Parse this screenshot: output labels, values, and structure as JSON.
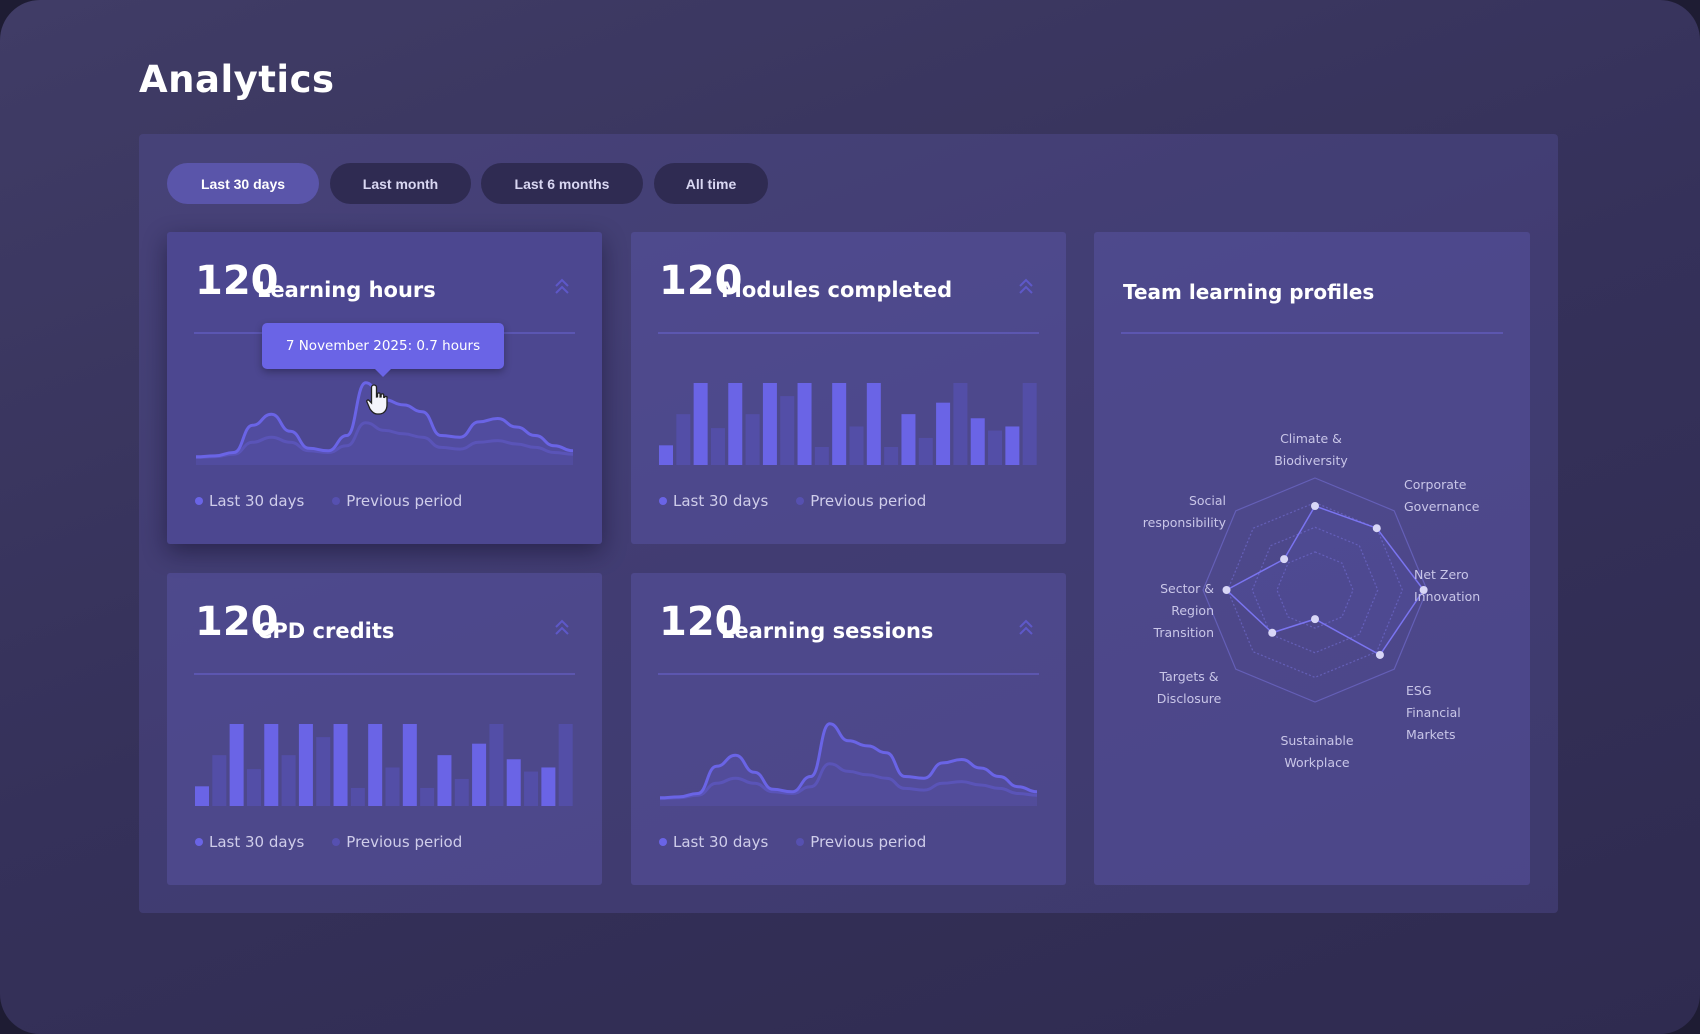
{
  "page": {
    "title": "Analytics"
  },
  "filters": [
    {
      "label": "Last 30 days",
      "active": true
    },
    {
      "label": "Last month",
      "active": false
    },
    {
      "label": "Last 6 months",
      "active": false
    },
    {
      "label": "All time",
      "active": false
    }
  ],
  "colors": {
    "accent": "#6a64e6",
    "previous": "#5650b0",
    "card": "#4c4790",
    "background": "#35315a"
  },
  "legend": {
    "current": "Last 30 days",
    "previous": "Previous period"
  },
  "cards": [
    {
      "value": "120",
      "label": "Learning hours",
      "icon": "chevron-double-up-icon",
      "chart": "line",
      "tooltip": "7 November 2025: 0.7 hours"
    },
    {
      "value": "120",
      "label": "Modules completed",
      "icon": "chevron-double-up-icon",
      "chart": "bar"
    },
    {
      "value": "120",
      "label": "CPD credits",
      "icon": "chevron-double-up-icon",
      "chart": "bar"
    },
    {
      "value": "120",
      "label": "Learning sessions",
      "icon": "chevron-double-up-icon",
      "chart": "line"
    }
  ],
  "radar": {
    "title": "Team learning profiles"
  },
  "chart_data": [
    {
      "type": "area",
      "name_ref": "Learning hours",
      "series": [
        {
          "name": "Last 30 days",
          "values": [
            5,
            6,
            10,
            42,
            55,
            35,
            15,
            12,
            30,
            92,
            72,
            66,
            58,
            30,
            28,
            46,
            50,
            40,
            30,
            18,
            12
          ]
        },
        {
          "name": "Previous period",
          "values": [
            4,
            5,
            8,
            22,
            28,
            22,
            12,
            10,
            18,
            45,
            36,
            32,
            28,
            16,
            14,
            22,
            24,
            20,
            16,
            10,
            8
          ]
        }
      ]
    },
    {
      "type": "bar",
      "name_ref": "Modules completed",
      "series": [
        {
          "name": "Last 30 days",
          "values": [
            24,
            100,
            100,
            100,
            100,
            100,
            100,
            62,
            76,
            57,
            47
          ]
        },
        {
          "name": "Previous period",
          "values": [
            62,
            45,
            62,
            84,
            22,
            47,
            22,
            33,
            100,
            42,
            100
          ]
        }
      ]
    },
    {
      "type": "bar",
      "name_ref": "CPD credits",
      "series": [
        {
          "name": "Last 30 days",
          "values": [
            24,
            100,
            100,
            100,
            100,
            100,
            100,
            62,
            76,
            57,
            47
          ]
        },
        {
          "name": "Previous period",
          "values": [
            62,
            45,
            62,
            84,
            22,
            47,
            22,
            33,
            100,
            42,
            100
          ]
        }
      ]
    },
    {
      "type": "area",
      "name_ref": "Learning sessions",
      "series": [
        {
          "name": "Last 30 days",
          "values": [
            5,
            6,
            10,
            42,
            55,
            35,
            15,
            12,
            30,
            92,
            72,
            66,
            58,
            30,
            28,
            46,
            50,
            40,
            30,
            18,
            12
          ]
        },
        {
          "name": "Previous period",
          "values": [
            4,
            5,
            8,
            22,
            28,
            22,
            12,
            10,
            18,
            45,
            36,
            32,
            28,
            16,
            14,
            22,
            24,
            20,
            16,
            10,
            8
          ]
        }
      ]
    },
    {
      "type": "radar",
      "title": "Team learning profiles",
      "axes": [
        "Climate & Biodiversity",
        "Corporate Governance",
        "Net Zero Innovation",
        "ESG Financial Markets",
        "Sustainable Workplace",
        "Targets & Disclosure",
        "Sector & Region Transition",
        "Social responsibility"
      ],
      "values": [
        75,
        78,
        97,
        82,
        26,
        54,
        79,
        39
      ],
      "max": 100
    }
  ]
}
